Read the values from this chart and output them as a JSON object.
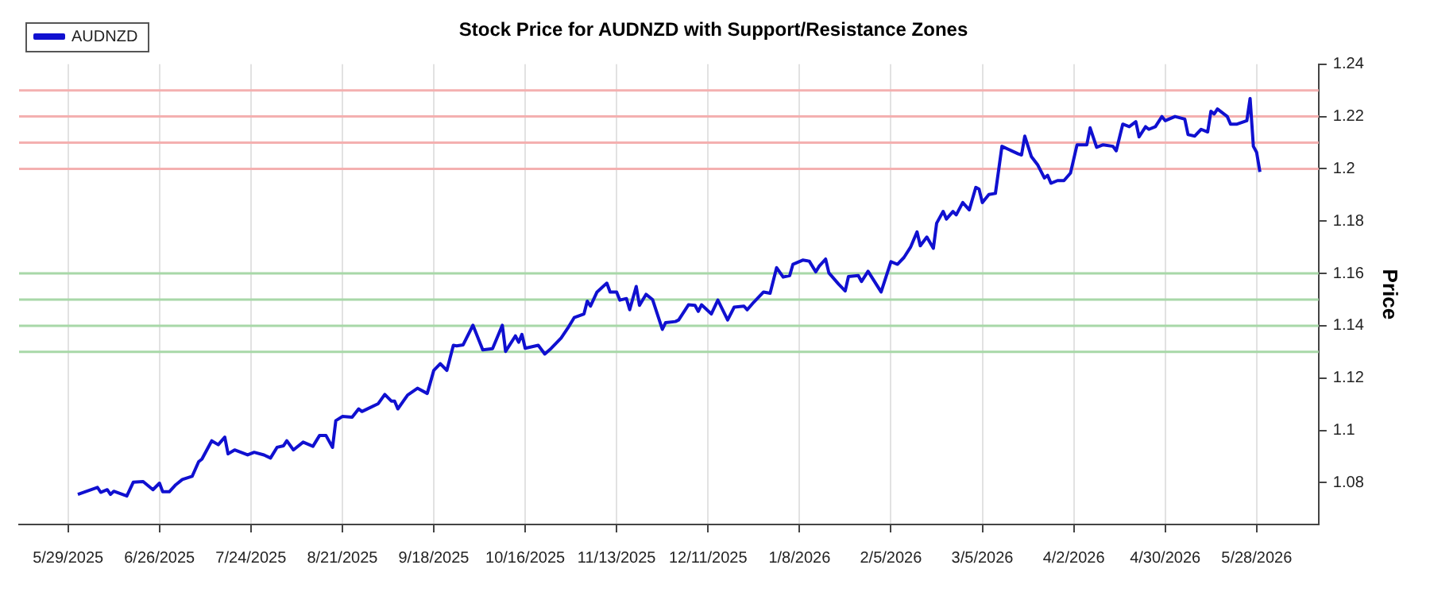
{
  "chart_data": {
    "type": "line",
    "title": "Stock Price for AUDNZD with Support/Resistance Zones",
    "ylabel": "Price",
    "x": [
      "2025-06-01",
      "2025-06-07",
      "2025-06-08",
      "2025-06-10",
      "2025-06-11",
      "2025-06-12",
      "2025-06-16",
      "2025-06-18",
      "2025-06-21",
      "2025-06-24",
      "2025-06-26",
      "2025-06-27",
      "2025-06-29",
      "2025-07-01",
      "2025-07-03",
      "2025-07-06",
      "2025-07-08",
      "2025-07-09",
      "2025-07-12",
      "2025-07-14",
      "2025-07-16",
      "2025-07-17",
      "2025-07-19",
      "2025-07-23",
      "2025-07-25",
      "2025-07-28",
      "2025-07-30",
      "2025-08-01",
      "2025-08-03",
      "2025-08-04",
      "2025-08-06",
      "2025-08-09",
      "2025-08-12",
      "2025-08-14",
      "2025-08-16",
      "2025-08-18",
      "2025-08-19",
      "2025-08-21",
      "2025-08-24",
      "2025-08-26",
      "2025-08-27",
      "2025-09-01",
      "2025-09-03",
      "2025-09-05",
      "2025-09-06",
      "2025-09-07",
      "2025-09-10",
      "2025-09-13",
      "2025-09-16",
      "2025-09-18",
      "2025-09-20",
      "2025-09-22",
      "2025-09-24",
      "2025-09-25",
      "2025-09-27",
      "2025-09-30",
      "2025-10-03",
      "2025-10-06",
      "2025-10-09",
      "2025-10-10",
      "2025-10-13",
      "2025-10-14",
      "2025-10-15",
      "2025-10-16",
      "2025-10-20",
      "2025-10-22",
      "2025-10-24",
      "2025-10-27",
      "2025-10-29",
      "2025-10-31",
      "2025-11-03",
      "2025-11-04",
      "2025-11-05",
      "2025-11-07",
      "2025-11-10",
      "2025-11-11",
      "2025-11-13",
      "2025-11-14",
      "2025-11-16",
      "2025-11-17",
      "2025-11-19",
      "2025-11-20",
      "2025-11-22",
      "2025-11-24",
      "2025-11-27",
      "2025-11-28",
      "2025-12-01",
      "2025-12-02",
      "2025-12-05",
      "2025-12-07",
      "2025-12-08",
      "2025-12-09",
      "2025-12-12",
      "2025-12-14",
      "2025-12-17",
      "2025-12-19",
      "2025-12-22",
      "2025-12-23",
      "2025-12-25",
      "2025-12-28",
      "2025-12-30",
      "2026-01-01",
      "2026-01-03",
      "2026-01-05",
      "2026-01-06",
      "2026-01-09",
      "2026-01-11",
      "2026-01-13",
      "2026-01-14",
      "2026-01-16",
      "2026-01-17",
      "2026-01-20",
      "2026-01-22",
      "2026-01-23",
      "2026-01-26",
      "2026-01-27",
      "2026-01-29",
      "2026-02-02",
      "2026-02-05",
      "2026-02-07",
      "2026-02-09",
      "2026-02-11",
      "2026-02-13",
      "2026-02-14",
      "2026-02-16",
      "2026-02-18",
      "2026-02-19",
      "2026-02-21",
      "2026-02-22",
      "2026-02-24",
      "2026-02-25",
      "2026-02-27",
      "2026-03-01",
      "2026-03-03",
      "2026-03-04",
      "2026-03-05",
      "2026-03-07",
      "2026-03-09",
      "2026-03-11",
      "2026-03-16",
      "2026-03-17",
      "2026-03-18",
      "2026-03-20",
      "2026-03-22",
      "2026-03-24",
      "2026-03-25",
      "2026-03-26",
      "2026-03-28",
      "2026-03-30",
      "2026-04-01",
      "2026-04-03",
      "2026-04-06",
      "2026-04-07",
      "2026-04-09",
      "2026-04-11",
      "2026-04-14",
      "2026-04-15",
      "2026-04-17",
      "2026-04-19",
      "2026-04-21",
      "2026-04-22",
      "2026-04-24",
      "2026-04-25",
      "2026-04-27",
      "2026-04-29",
      "2026-04-30",
      "2026-05-03",
      "2026-05-06",
      "2026-05-07",
      "2026-05-09",
      "2026-05-11",
      "2026-05-13",
      "2026-05-14",
      "2026-05-15",
      "2026-05-16",
      "2026-05-19",
      "2026-05-20",
      "2026-05-22",
      "2026-05-25",
      "2026-05-26",
      "2026-05-27",
      "2026-05-28",
      "2026-05-29"
    ],
    "series": [
      {
        "name": "AUDNZD",
        "color": "#1010d0",
        "values": [
          1.0755,
          1.0782,
          1.0763,
          1.0773,
          1.0755,
          1.0767,
          1.0749,
          1.0802,
          1.0804,
          1.0773,
          1.0798,
          1.0765,
          1.0765,
          1.0792,
          1.0812,
          1.0824,
          1.088,
          1.089,
          1.096,
          1.0945,
          1.0974,
          1.091,
          1.0925,
          1.0906,
          1.0916,
          1.0906,
          1.0894,
          1.0935,
          1.0941,
          1.096,
          1.0925,
          1.0955,
          1.0939,
          1.098,
          1.098,
          1.0935,
          1.1037,
          1.1053,
          1.105,
          1.1082,
          1.1072,
          1.1102,
          1.1137,
          1.1112,
          1.1112,
          1.1082,
          1.1135,
          1.1161,
          1.1141,
          1.1229,
          1.1255,
          1.1229,
          1.1325,
          1.1323,
          1.1327,
          1.1402,
          1.1308,
          1.1312,
          1.1402,
          1.1302,
          1.1361,
          1.1337,
          1.1367,
          1.1314,
          1.1325,
          1.1292,
          1.1314,
          1.1353,
          1.139,
          1.1431,
          1.1445,
          1.1494,
          1.1475,
          1.1529,
          1.1563,
          1.1529,
          1.1529,
          1.1498,
          1.1504,
          1.1461,
          1.155,
          1.1478,
          1.152,
          1.15,
          1.1386,
          1.1412,
          1.1416,
          1.1422,
          1.148,
          1.1478,
          1.1455,
          1.148,
          1.1445,
          1.1498,
          1.1422,
          1.1471,
          1.1475,
          1.1461,
          1.149,
          1.1529,
          1.1524,
          1.1622,
          1.1586,
          1.1592,
          1.1635,
          1.1651,
          1.1647,
          1.1606,
          1.1627,
          1.1655,
          1.1602,
          1.1559,
          1.1533,
          1.1588,
          1.1592,
          1.1569,
          1.1608,
          1.1529,
          1.1645,
          1.1635,
          1.1661,
          1.17,
          1.1759,
          1.1706,
          1.1739,
          1.1696,
          1.1792,
          1.1837,
          1.1808,
          1.1837,
          1.1824,
          1.1871,
          1.1843,
          1.1929,
          1.1922,
          1.1871,
          1.1902,
          1.1906,
          1.2086,
          1.2057,
          1.2053,
          1.2125,
          1.2047,
          1.2014,
          1.1965,
          1.1975,
          1.1945,
          1.1955,
          1.1955,
          1.1984,
          1.2092,
          1.2092,
          1.2157,
          1.2082,
          1.2092,
          1.2086,
          1.2069,
          1.2171,
          1.2161,
          1.218,
          1.2122,
          1.2161,
          1.2151,
          1.2161,
          1.22,
          1.2184,
          1.22,
          1.219,
          1.2131,
          1.2125,
          1.2151,
          1.2141,
          1.222,
          1.221,
          1.2229,
          1.22,
          1.2171,
          1.2171,
          1.2184,
          1.2269,
          1.2086,
          1.2063,
          1.1988
        ]
      }
    ],
    "xlim": [
      "2025-05-14",
      "2026-06-16"
    ],
    "xticks": [
      {
        "value": "2025-05-29",
        "label": "5/29/2025"
      },
      {
        "value": "2025-06-26",
        "label": "6/26/2025"
      },
      {
        "value": "2025-07-24",
        "label": "7/24/2025"
      },
      {
        "value": "2025-08-21",
        "label": "8/21/2025"
      },
      {
        "value": "2025-09-18",
        "label": "9/18/2025"
      },
      {
        "value": "2025-10-16",
        "label": "10/16/2025"
      },
      {
        "value": "2025-11-13",
        "label": "11/13/2025"
      },
      {
        "value": "2025-12-11",
        "label": "12/11/2025"
      },
      {
        "value": "2026-01-08",
        "label": "1/8/2026"
      },
      {
        "value": "2026-02-05",
        "label": "2/5/2026"
      },
      {
        "value": "2026-03-05",
        "label": "3/5/2026"
      },
      {
        "value": "2026-04-02",
        "label": "4/2/2026"
      },
      {
        "value": "2026-04-30",
        "label": "4/30/2026"
      },
      {
        "value": "2026-05-28",
        "label": "5/28/2026"
      }
    ],
    "ylim": [
      1.064,
      1.24
    ],
    "yticks": [
      1.08,
      1.1,
      1.12,
      1.14,
      1.16,
      1.18,
      1.2,
      1.22,
      1.24
    ],
    "ref_lines": [
      {
        "axis": "y",
        "value": 1.2,
        "color": "#f4b0b0"
      },
      {
        "axis": "y",
        "value": 1.21,
        "color": "#f4b0b0"
      },
      {
        "axis": "y",
        "value": 1.22,
        "color": "#f4b0b0"
      },
      {
        "axis": "y",
        "value": 1.23,
        "color": "#f4b0b0"
      },
      {
        "axis": "y",
        "value": 1.13,
        "color": "#a8d8a8"
      },
      {
        "axis": "y",
        "value": 1.14,
        "color": "#a8d8a8"
      },
      {
        "axis": "y",
        "value": 1.15,
        "color": "#a8d8a8"
      },
      {
        "axis": "y",
        "value": 1.16,
        "color": "#a8d8a8"
      }
    ],
    "grid": "x",
    "legend": "top left",
    "marker": "none",
    "line_style": "solid"
  }
}
